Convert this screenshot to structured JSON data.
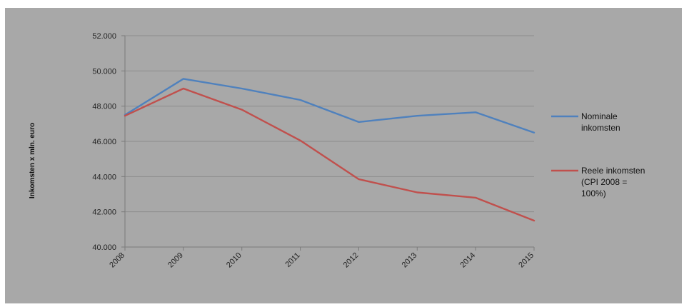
{
  "chart_data": {
    "type": "line",
    "ylabel": "Inkomsten x mln. euro",
    "xlabel": "",
    "title": "",
    "x": [
      "2008",
      "2009",
      "2010",
      "2011",
      "2012",
      "2013",
      "2014",
      "2015"
    ],
    "ylim": [
      40000,
      52000
    ],
    "yticks": [
      "40.000",
      "42.000",
      "44.000",
      "46.000",
      "48.000",
      "50.000",
      "52.000"
    ],
    "ytick_values": [
      40000,
      42000,
      44000,
      46000,
      48000,
      50000,
      52000
    ],
    "grid": "horizontal",
    "legend_position": "right",
    "series": [
      {
        "name": "Nominale inkomsten",
        "name_lines": [
          "Nominale",
          "inkomsten"
        ],
        "color": "#4f81bd",
        "values": [
          47500,
          49550,
          49000,
          48350,
          47100,
          47450,
          47650,
          46500
        ]
      },
      {
        "name": "Reele inkomsten (CPI 2008 = 100%)",
        "name_lines": [
          "Reele inkomsten",
          "(CPI 2008 =",
          "100%)"
        ],
        "color": "#c0504d",
        "values": [
          47450,
          49000,
          47800,
          46050,
          43850,
          43100,
          42800,
          41500
        ]
      }
    ]
  }
}
